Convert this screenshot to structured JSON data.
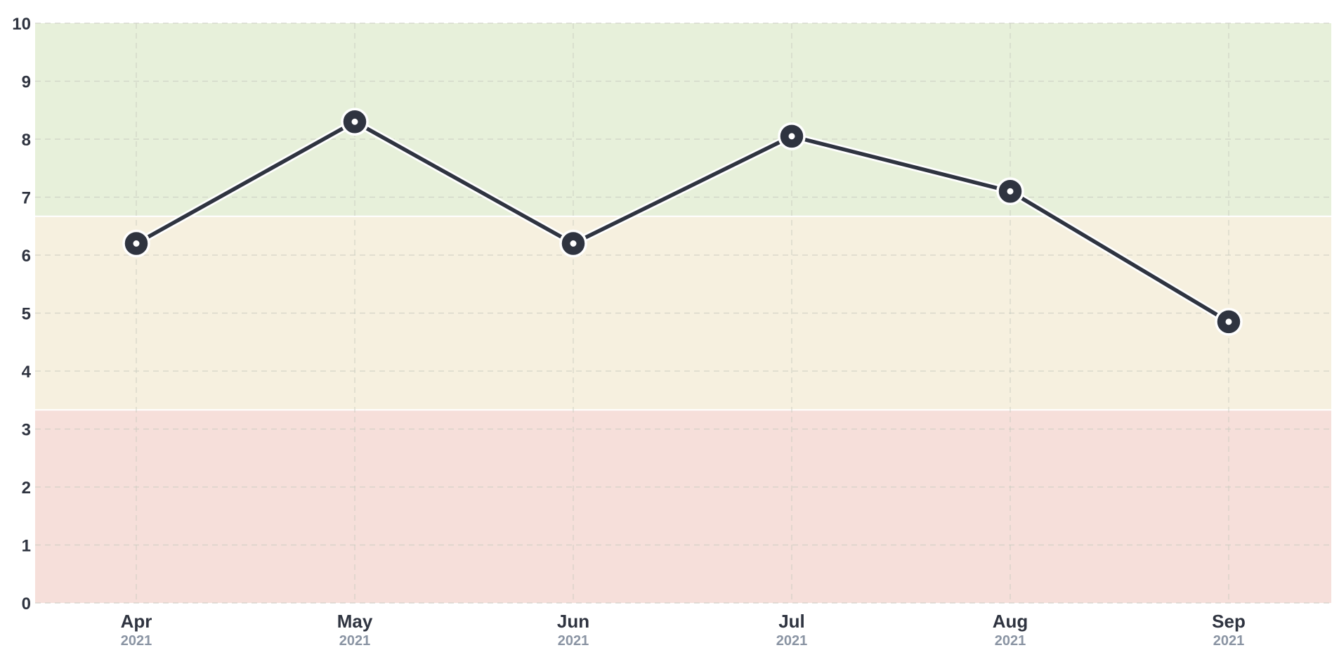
{
  "chart_data": {
    "type": "line",
    "title": "",
    "xlabel": "",
    "ylabel": "",
    "categories": [
      "Apr",
      "May",
      "Jun",
      "Jul",
      "Aug",
      "Sep"
    ],
    "category_years": [
      "2021",
      "2021",
      "2021",
      "2021",
      "2021",
      "2021"
    ],
    "series": [
      {
        "values": [
          6.2,
          8.3,
          6.2,
          8.05,
          7.1,
          4.85
        ],
        "color": "#2f3440"
      }
    ],
    "ylim": [
      0,
      10
    ],
    "yticks": [
      "0",
      "1",
      "2",
      "3",
      "4",
      "5",
      "6",
      "7",
      "8",
      "9",
      "10"
    ],
    "grid": true,
    "bands": [
      {
        "from": 0,
        "to": 3.33,
        "color": "#f6dfda"
      },
      {
        "from": 3.33,
        "to": 6.67,
        "color": "#f6f0df"
      },
      {
        "from": 6.67,
        "to": 10,
        "color": "#e7f0da"
      }
    ],
    "colors": {
      "line": "#2f3440",
      "marker_fill": "#2f3440",
      "marker_ring": "#ffffff",
      "grid": "#c9cbc0",
      "tick_text": "#2f3440",
      "year_text": "#8a94a3"
    }
  }
}
